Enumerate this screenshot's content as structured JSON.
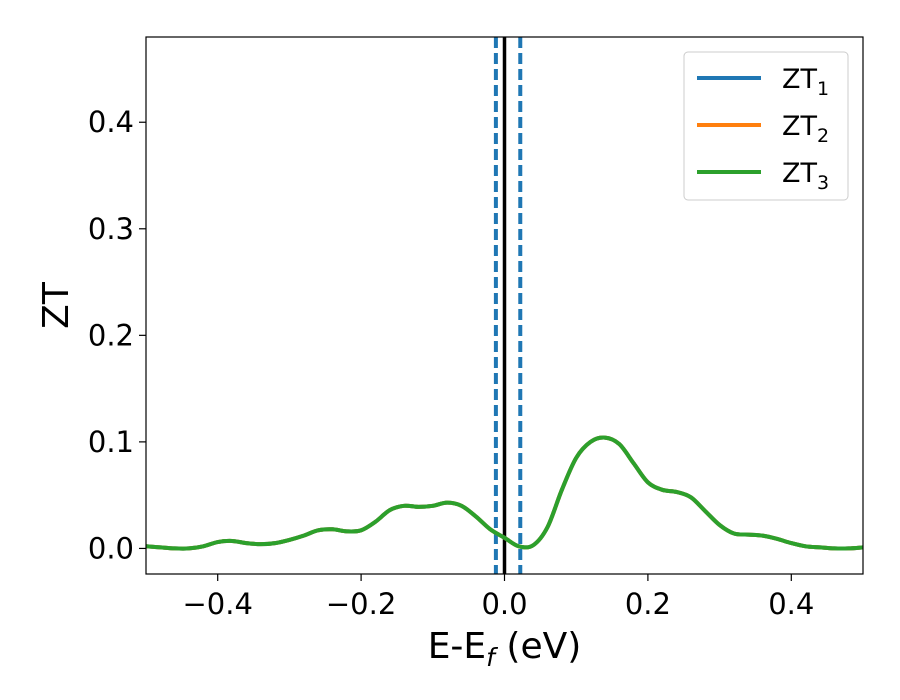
{
  "chart_data": {
    "type": "line",
    "title": "",
    "xlabel": "E-E",
    "xlabel_sub": "f",
    "xlabel_unit": " (eV)",
    "ylabel": "ZT",
    "xlim": [
      -0.5,
      0.5
    ],
    "ylim": [
      -0.024,
      0.48
    ],
    "x_ticks": [
      -0.4,
      -0.2,
      0.0,
      0.2,
      0.4
    ],
    "x_tick_labels": [
      "−0.4",
      "−0.2",
      "0.0",
      "0.2",
      "0.4"
    ],
    "y_ticks": [
      0.0,
      0.1,
      0.2,
      0.3,
      0.4
    ],
    "y_tick_labels": [
      "0.0",
      "0.1",
      "0.2",
      "0.3",
      "0.4"
    ],
    "grid": false,
    "legend_position": "top-right",
    "vlines": [
      {
        "x": 0.0,
        "style": "solid",
        "color": "#000000"
      },
      {
        "x": -0.012,
        "style": "dashed",
        "color": "#1f77b4"
      },
      {
        "x": 0.022,
        "style": "dashed",
        "color": "#1f77b4"
      }
    ],
    "x": [
      -0.5,
      -0.48,
      -0.46,
      -0.44,
      -0.42,
      -0.4,
      -0.38,
      -0.36,
      -0.34,
      -0.32,
      -0.3,
      -0.28,
      -0.26,
      -0.24,
      -0.22,
      -0.2,
      -0.18,
      -0.16,
      -0.14,
      -0.12,
      -0.1,
      -0.08,
      -0.06,
      -0.04,
      -0.02,
      0.0,
      0.02,
      0.04,
      0.06,
      0.08,
      0.1,
      0.12,
      0.14,
      0.16,
      0.18,
      0.2,
      0.22,
      0.24,
      0.26,
      0.28,
      0.3,
      0.32,
      0.34,
      0.36,
      0.38,
      0.4,
      0.42,
      0.44,
      0.46,
      0.48,
      0.5
    ],
    "series": [
      {
        "name": "ZT",
        "sub": "1",
        "color": "#1f77b4",
        "values": [
          0.002,
          0.001,
          0.0,
          0.0,
          0.002,
          0.006,
          0.007,
          0.005,
          0.004,
          0.005,
          0.008,
          0.012,
          0.017,
          0.018,
          0.016,
          0.017,
          0.025,
          0.036,
          0.04,
          0.039,
          0.04,
          0.043,
          0.04,
          0.03,
          0.018,
          0.01,
          0.002,
          0.003,
          0.02,
          0.055,
          0.085,
          0.1,
          0.104,
          0.098,
          0.08,
          0.062,
          0.055,
          0.053,
          0.048,
          0.035,
          0.022,
          0.014,
          0.013,
          0.012,
          0.009,
          0.005,
          0.002,
          0.001,
          0.0,
          0.0,
          0.001
        ]
      },
      {
        "name": "ZT",
        "sub": "2",
        "color": "#ff7f0e",
        "values": [
          0.002,
          0.001,
          0.0,
          0.0,
          0.002,
          0.006,
          0.007,
          0.005,
          0.004,
          0.005,
          0.008,
          0.012,
          0.017,
          0.018,
          0.016,
          0.017,
          0.025,
          0.036,
          0.04,
          0.039,
          0.04,
          0.043,
          0.04,
          0.03,
          0.018,
          0.01,
          0.002,
          0.003,
          0.02,
          0.055,
          0.085,
          0.1,
          0.104,
          0.098,
          0.08,
          0.062,
          0.055,
          0.053,
          0.048,
          0.035,
          0.022,
          0.014,
          0.013,
          0.012,
          0.009,
          0.005,
          0.002,
          0.001,
          0.0,
          0.0,
          0.001
        ]
      },
      {
        "name": "ZT",
        "sub": "3",
        "color": "#2ca02c",
        "values": [
          0.002,
          0.001,
          0.0,
          0.0,
          0.002,
          0.006,
          0.007,
          0.005,
          0.004,
          0.005,
          0.008,
          0.012,
          0.017,
          0.018,
          0.016,
          0.017,
          0.025,
          0.036,
          0.04,
          0.039,
          0.04,
          0.043,
          0.04,
          0.03,
          0.018,
          0.01,
          0.002,
          0.003,
          0.02,
          0.055,
          0.085,
          0.1,
          0.104,
          0.098,
          0.08,
          0.062,
          0.055,
          0.053,
          0.048,
          0.035,
          0.022,
          0.014,
          0.013,
          0.012,
          0.009,
          0.005,
          0.002,
          0.001,
          0.0,
          0.0,
          0.001
        ]
      }
    ]
  }
}
